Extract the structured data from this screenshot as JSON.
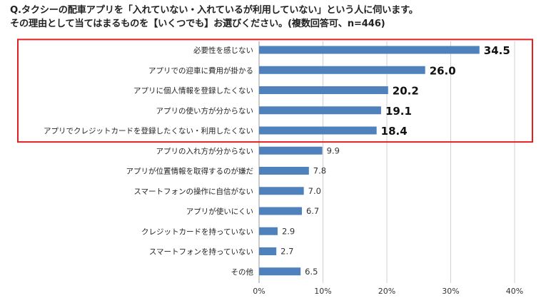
{
  "question": {
    "line1": "Q.タクシーの配車アプリを「入れていない・入れているが利用していない」という人に伺います。",
    "line2": "その理由として当てはまるものを【いくつでも】お選びください。(複数回答可、n=446)"
  },
  "colors": {
    "bar": "#4f81bd",
    "highlight_border": "#e02020",
    "grid": "#d0d0d0"
  },
  "chart_data": {
    "type": "bar",
    "orientation": "horizontal",
    "categories": [
      "必要性を感じない",
      "アプリでの迎車に費用が掛かる",
      "アプリに個人情報を登録したくない",
      "アプリの使い方が分からない",
      "アプリでクレジットカードを登録したくない・利用したくない",
      "アプリの入れ方が分からない",
      "アプリが位置情報を取得するのが嫌だ",
      "スマートフォンの操作に自信がない",
      "アプリが使いにくい",
      "クレジットカードを持っていない",
      "スマートフォンを持っていない",
      "その他"
    ],
    "values": [
      34.5,
      26.0,
      20.2,
      19.1,
      18.4,
      9.9,
      7.8,
      7.0,
      6.7,
      2.9,
      2.7,
      6.5
    ],
    "value_labels": [
      "34.5",
      "26.0",
      "20.2",
      "19.1",
      "18.4",
      "9.9",
      "7.8",
      "7.0",
      "6.7",
      "2.9",
      "2.7",
      "6.5"
    ],
    "highlighted_top_n": 5,
    "xlim": [
      0,
      40
    ],
    "x_ticks": [
      "0%",
      "10%",
      "20%",
      "30%",
      "40%"
    ],
    "grid": true,
    "title": "",
    "xlabel": "",
    "ylabel": ""
  }
}
